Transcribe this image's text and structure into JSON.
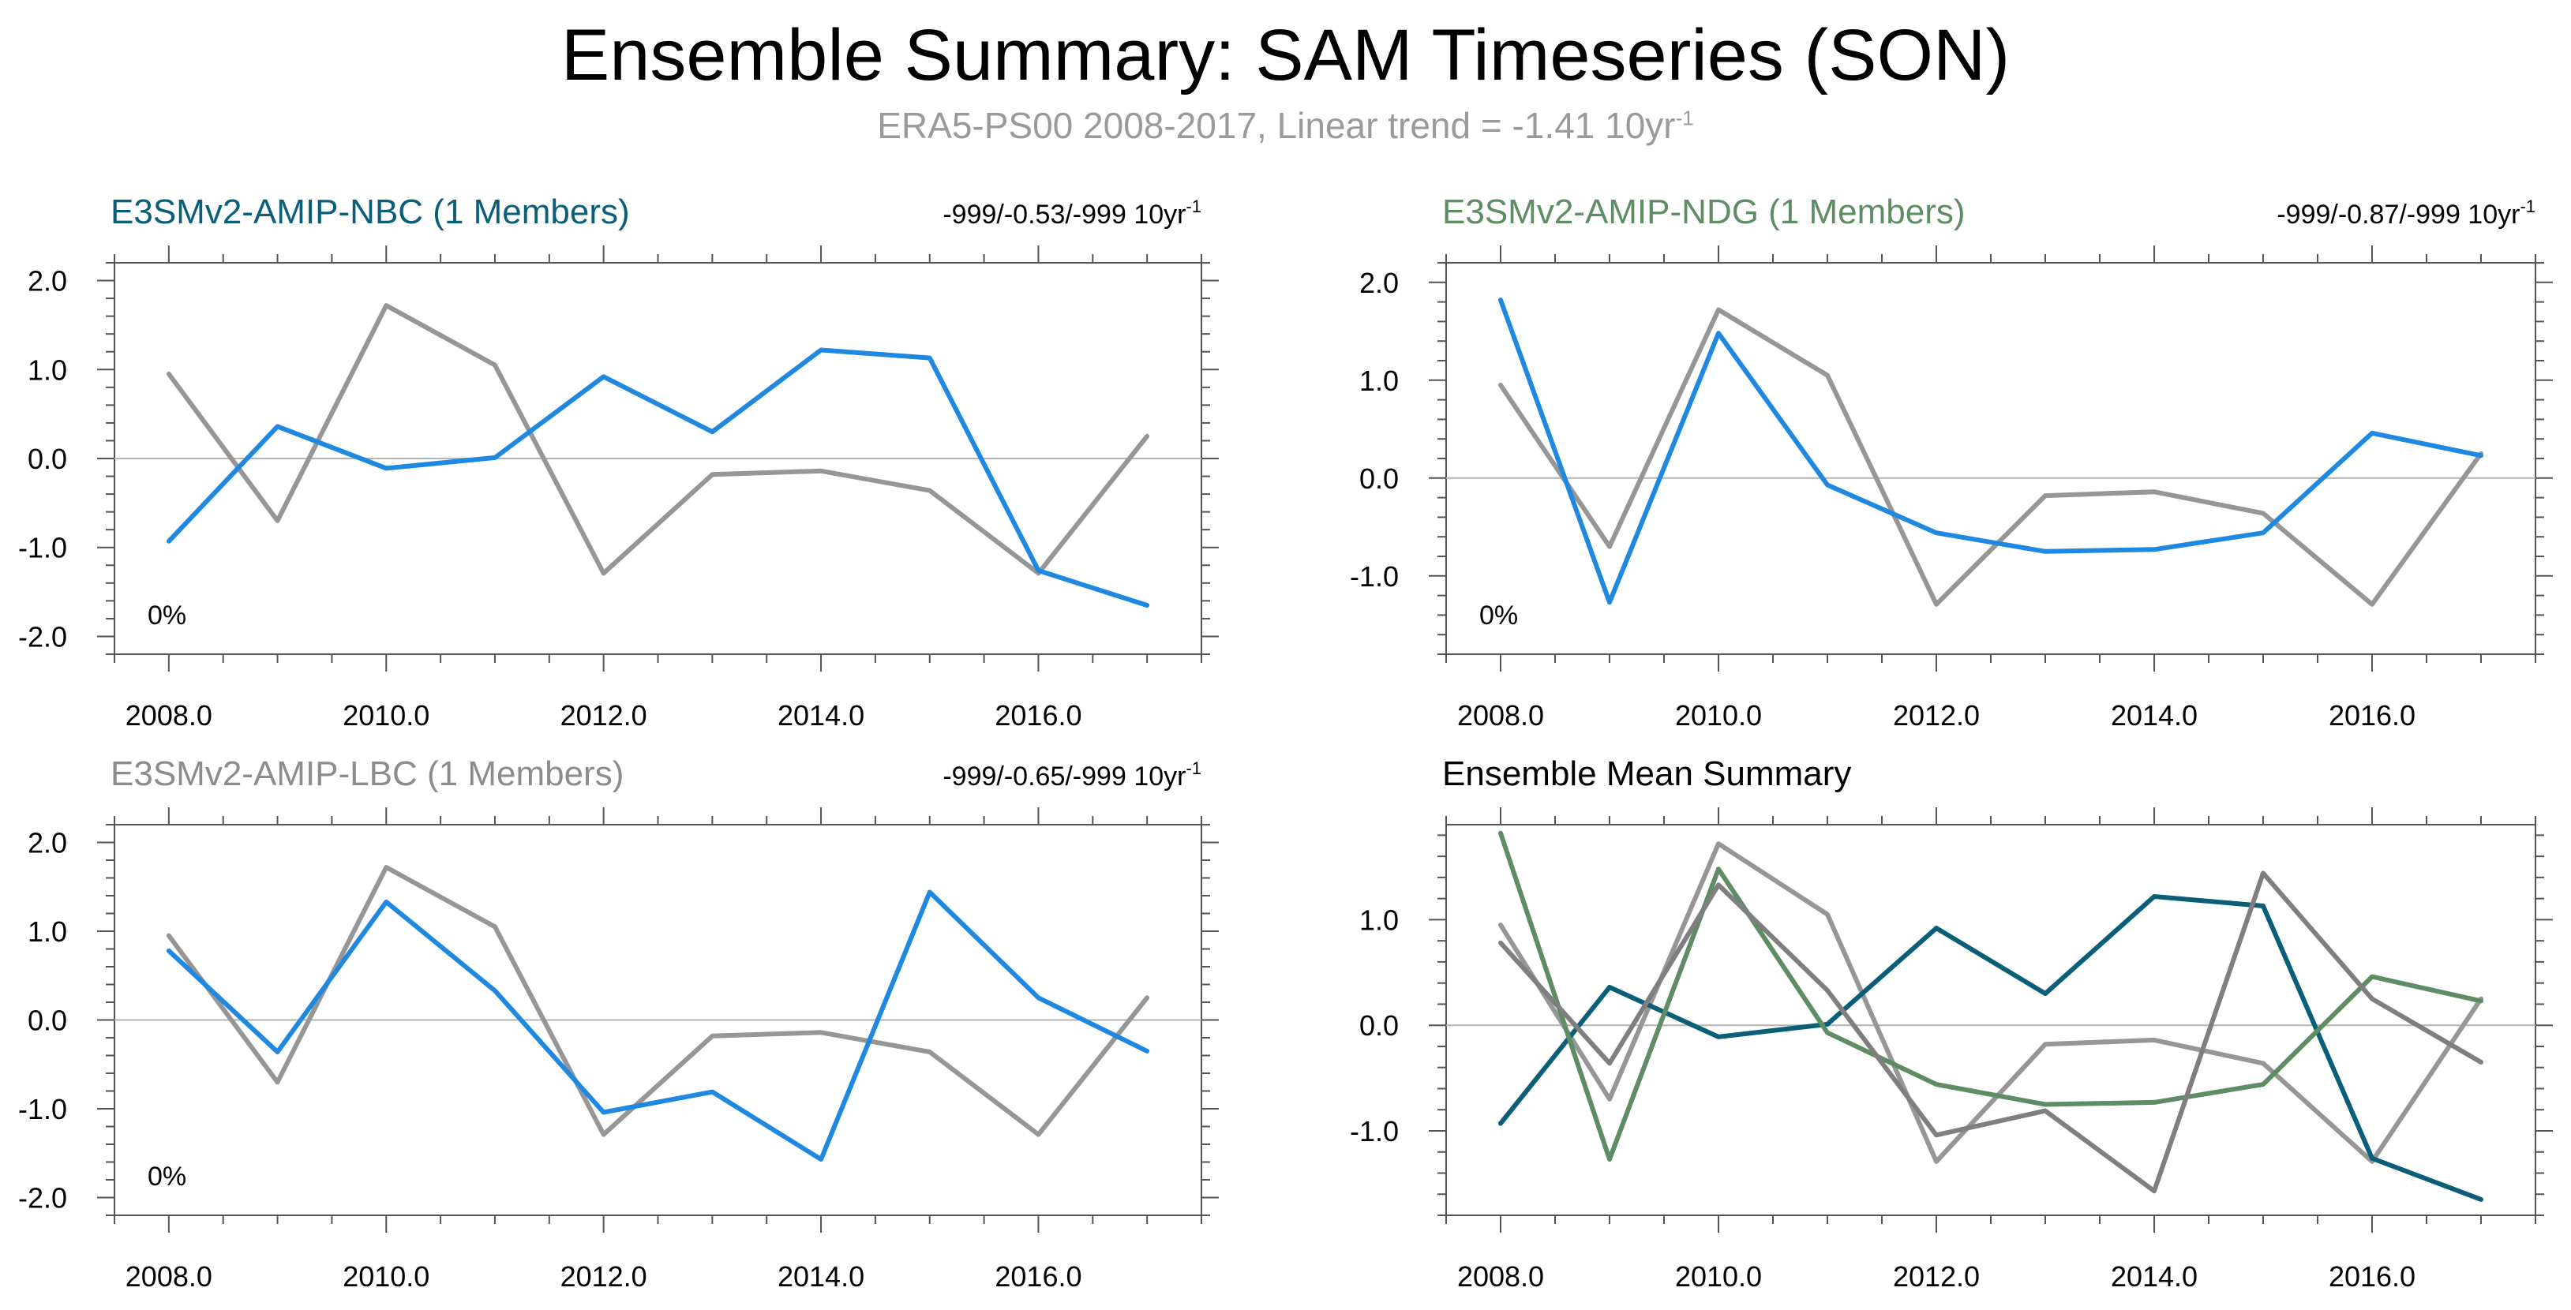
{
  "title": "Ensemble Summary: SAM Timeseries (SON)",
  "subtitle": {
    "text": "ERA5-PS00 2008-2017, Linear trend = -1.41 10yr",
    "sup": "-1"
  },
  "colors": {
    "obs": "#969696",
    "model_line": "#1f88e0",
    "nbc": "#0b5e78",
    "ndg": "#5e8c64",
    "lbc": "#8c8c8c",
    "lbc_mean": "#7f7f7f",
    "zero_line": "#b4b4b4",
    "axis": "#555555",
    "text": "#000000"
  },
  "chart_data": [
    {
      "type": "line",
      "id": "nbc",
      "title": "E3SMv2-AMIP-NBC (1 Members)",
      "title_color": "#0b5e78",
      "trend": "-999/-0.53/-999 10yr",
      "trend_sup": "-1",
      "percent": "0%",
      "x": [
        2008,
        2009,
        2010,
        2011,
        2012,
        2013,
        2014,
        2015,
        2016,
        2017
      ],
      "xticks": [
        "2008.0",
        "2010.0",
        "2012.0",
        "2014.0",
        "2016.0"
      ],
      "xtick_values": [
        2008,
        2010,
        2012,
        2014,
        2016
      ],
      "yticks": [
        "-2.0",
        "-1.0",
        "0.0",
        "1.0",
        "2.0"
      ],
      "ytick_values": [
        -2,
        -1,
        0,
        1,
        2
      ],
      "xlim": [
        2007.5,
        2017.5
      ],
      "ylim": [
        -2.2,
        2.2
      ],
      "series": [
        {
          "name": "ERA5-PS00",
          "color": "#969696",
          "values": [
            0.95,
            -0.7,
            1.72,
            1.05,
            -1.29,
            -0.18,
            -0.14,
            -0.36,
            -1.29,
            0.25
          ]
        },
        {
          "name": "E3SMv2-AMIP-NBC",
          "color": "#1f88e0",
          "values": [
            -0.93,
            0.36,
            -0.11,
            0.01,
            0.92,
            0.3,
            1.22,
            1.13,
            -1.26,
            -1.65
          ]
        }
      ]
    },
    {
      "type": "line",
      "id": "ndg",
      "title": "E3SMv2-AMIP-NDG (1 Members)",
      "title_color": "#5e8c64",
      "trend": "-999/-0.87/-999 10yr",
      "trend_sup": "-1",
      "percent": "0%",
      "x": [
        2008,
        2009,
        2010,
        2011,
        2012,
        2013,
        2014,
        2015,
        2016,
        2017
      ],
      "xticks": [
        "2008.0",
        "2010.0",
        "2012.0",
        "2014.0",
        "2016.0"
      ],
      "xtick_values": [
        2008,
        2010,
        2012,
        2014,
        2016
      ],
      "yticks": [
        "-1.0",
        "0.0",
        "1.0",
        "2.0"
      ],
      "ytick_values": [
        -1,
        0,
        1,
        2
      ],
      "xlim": [
        2007.5,
        2017.5
      ],
      "ylim": [
        -1.8,
        2.2
      ],
      "series": [
        {
          "name": "ERA5-PS00",
          "color": "#969696",
          "values": [
            0.95,
            -0.7,
            1.72,
            1.05,
            -1.29,
            -0.18,
            -0.14,
            -0.36,
            -1.29,
            0.25
          ]
        },
        {
          "name": "E3SMv2-AMIP-NDG",
          "color": "#1f88e0",
          "values": [
            1.82,
            -1.27,
            1.48,
            -0.07,
            -0.56,
            -0.75,
            -0.73,
            -0.56,
            0.46,
            0.23
          ]
        }
      ]
    },
    {
      "type": "line",
      "id": "lbc",
      "title": "E3SMv2-AMIP-LBC (1 Members)",
      "title_color": "#8c8c8c",
      "trend": "-999/-0.65/-999 10yr",
      "trend_sup": "-1",
      "percent": "0%",
      "x": [
        2008,
        2009,
        2010,
        2011,
        2012,
        2013,
        2014,
        2015,
        2016,
        2017
      ],
      "xticks": [
        "2008.0",
        "2010.0",
        "2012.0",
        "2014.0",
        "2016.0"
      ],
      "xtick_values": [
        2008,
        2010,
        2012,
        2014,
        2016
      ],
      "yticks": [
        "-2.0",
        "-1.0",
        "0.0",
        "1.0",
        "2.0"
      ],
      "ytick_values": [
        -2,
        -1,
        0,
        1,
        2
      ],
      "xlim": [
        2007.5,
        2017.5
      ],
      "ylim": [
        -2.2,
        2.2
      ],
      "series": [
        {
          "name": "ERA5-PS00",
          "color": "#969696",
          "values": [
            0.95,
            -0.7,
            1.72,
            1.05,
            -1.29,
            -0.18,
            -0.14,
            -0.36,
            -1.29,
            0.25
          ]
        },
        {
          "name": "E3SMv2-AMIP-LBC",
          "color": "#1f88e0",
          "values": [
            0.78,
            -0.36,
            1.33,
            0.33,
            -1.04,
            -0.81,
            -1.57,
            1.44,
            0.25,
            -0.35
          ]
        }
      ]
    },
    {
      "type": "line",
      "id": "mean",
      "title": "Ensemble Mean Summary",
      "title_color": "#000000",
      "trend": "",
      "trend_sup": "",
      "percent": "",
      "x": [
        2008,
        2009,
        2010,
        2011,
        2012,
        2013,
        2014,
        2015,
        2016,
        2017
      ],
      "xticks": [
        "2008.0",
        "2010.0",
        "2012.0",
        "2014.0",
        "2016.0"
      ],
      "xtick_values": [
        2008,
        2010,
        2012,
        2014,
        2016
      ],
      "yticks": [
        "-1.0",
        "0.0",
        "1.0"
      ],
      "ytick_values": [
        -1,
        0,
        1
      ],
      "xlim": [
        2007.5,
        2017.5
      ],
      "ylim": [
        -1.8,
        1.9
      ],
      "series": [
        {
          "name": "ERA5-PS00",
          "color": "#969696",
          "values": [
            0.95,
            -0.7,
            1.72,
            1.05,
            -1.29,
            -0.18,
            -0.14,
            -0.36,
            -1.29,
            0.25
          ]
        },
        {
          "name": "E3SMv2-AMIP-NBC",
          "color": "#0b5e78",
          "values": [
            -0.93,
            0.36,
            -0.11,
            0.01,
            0.92,
            0.3,
            1.22,
            1.13,
            -1.26,
            -1.65
          ]
        },
        {
          "name": "E3SMv2-AMIP-NDG",
          "color": "#5e8c64",
          "values": [
            1.82,
            -1.27,
            1.48,
            -0.07,
            -0.56,
            -0.75,
            -0.73,
            -0.56,
            0.46,
            0.23
          ]
        },
        {
          "name": "E3SMv2-AMIP-LBC",
          "color": "#7f7f7f",
          "values": [
            0.78,
            -0.36,
            1.33,
            0.33,
            -1.04,
            -0.81,
            -1.57,
            1.44,
            0.25,
            -0.35
          ]
        }
      ]
    }
  ]
}
